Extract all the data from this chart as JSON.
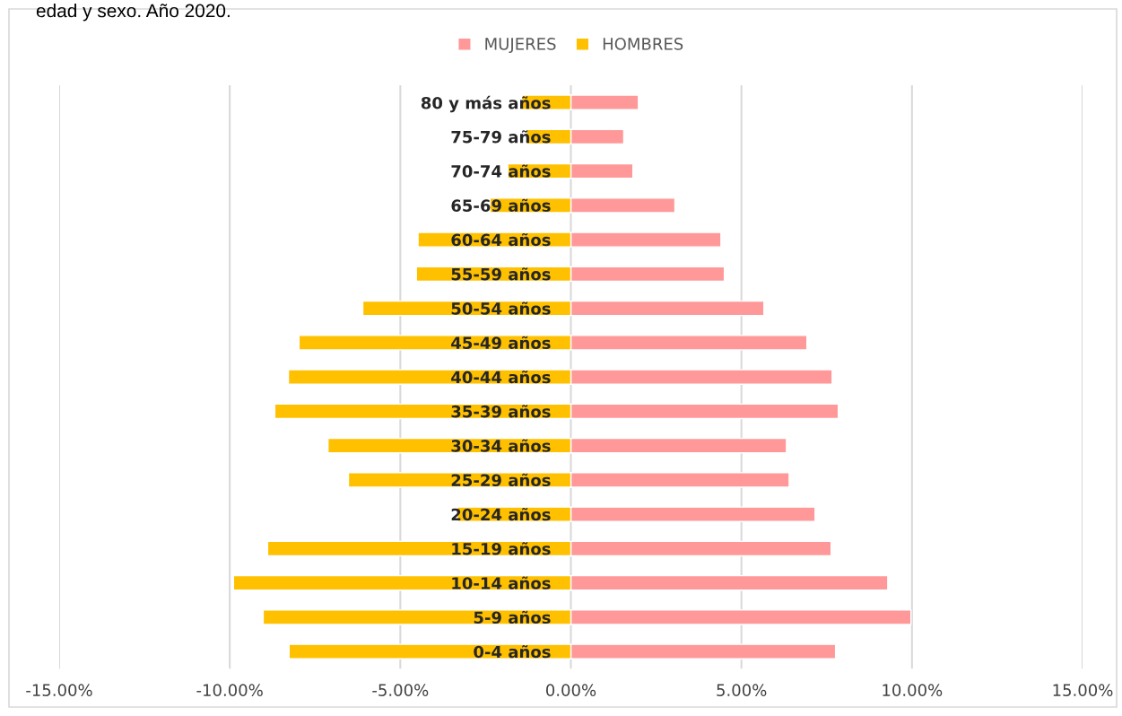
{
  "chart_data": {
    "type": "bar",
    "orientation": "horizontal",
    "title": "edad y sexo. Año 2020.",
    "categories": [
      "80 y más años",
      "75-79 años",
      "70-74 años",
      "65-69 años",
      "60-64 años",
      "55-59 años",
      "50-54 años",
      "45-49 años",
      "40-44 años",
      "35-39 años",
      "30-34 años",
      "25-29 años",
      "20-24 años",
      "15-19 años",
      "10-14 años",
      "5-9 años",
      "0-4 años"
    ],
    "series": [
      {
        "name": "MUJERES",
        "color": "#ff9999",
        "values": [
          1.98,
          1.55,
          1.82,
          3.05,
          4.4,
          4.5,
          5.66,
          6.92,
          7.66,
          7.84,
          6.32,
          6.4,
          7.16,
          7.63,
          9.29,
          9.97,
          7.76
        ]
      },
      {
        "name": "HOMBRES",
        "color": "#ffc000",
        "values": [
          -1.43,
          -1.3,
          -1.85,
          -2.37,
          -4.48,
          -4.53,
          -6.1,
          -7.97,
          -8.28,
          -8.68,
          -7.12,
          -6.52,
          -3.33,
          -8.89,
          -9.89,
          -9.02,
          -8.26
        ]
      }
    ],
    "xlim": [
      -15,
      15
    ],
    "stacked": true,
    "xticks": [
      {
        "value": -15,
        "label": "-15.00%"
      },
      {
        "value": -10,
        "label": "-10.00%"
      },
      {
        "value": -5,
        "label": "-5.00%"
      },
      {
        "value": 0,
        "label": "0.00%"
      },
      {
        "value": 5,
        "label": "5.00%"
      },
      {
        "value": 10,
        "label": "10.00%"
      },
      {
        "value": 15,
        "label": "15.00%"
      }
    ],
    "grid": "x",
    "legend": "top"
  }
}
